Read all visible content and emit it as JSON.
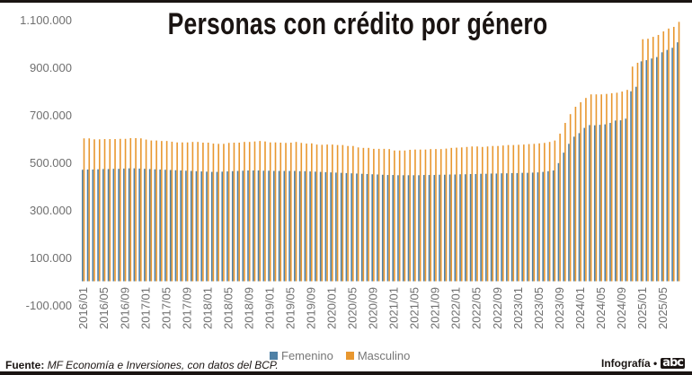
{
  "chart_data": {
    "type": "bar",
    "title": "Personas con crédito por género",
    "xlabel": "",
    "ylabel": "",
    "ylim": [
      -100000,
      1100000
    ],
    "yticks": [
      -100000,
      100000,
      300000,
      500000,
      700000,
      900000,
      1100000
    ],
    "ytick_labels": [
      "-100.000",
      "100.000",
      "300.000",
      "500.000",
      "700.000",
      "900.000",
      "1.100.000"
    ],
    "start_year": 2016,
    "start_month": 1,
    "n_months": 116,
    "xtick_labels": [
      "2016/01",
      "2016/05",
      "2016/09",
      "2017/01",
      "2017/05",
      "2017/09",
      "2018/01",
      "2018/05",
      "2018/09",
      "2019/01",
      "2019/05",
      "2019/09",
      "2020/01",
      "2020/05",
      "2020/09",
      "2021/01",
      "2021/05",
      "2021/09",
      "2022/01",
      "2022/05",
      "2022/09",
      "2023/01",
      "2023/05",
      "2023/09",
      "2024/01",
      "2024/05",
      "2024/09",
      "2025/01",
      "2025/05"
    ],
    "grid": false,
    "legend_position": "bottom-center",
    "series": [
      {
        "name": "Femenino",
        "color": "#4f81a6",
        "values": [
          469000,
          470000,
          470000,
          471000,
          472000,
          472000,
          473000,
          473000,
          474000,
          475000,
          475000,
          474000,
          473000,
          472000,
          471000,
          470000,
          469000,
          468000,
          467000,
          466000,
          465000,
          464000,
          463000,
          462000,
          461000,
          460000,
          460000,
          461000,
          462000,
          463000,
          464000,
          465000,
          466000,
          466000,
          466000,
          465000,
          465000,
          464000,
          464000,
          464000,
          464000,
          464000,
          463000,
          463000,
          462000,
          461000,
          460000,
          459000,
          458000,
          457000,
          456000,
          455000,
          454000,
          453000,
          452000,
          451000,
          450000,
          449000,
          448000,
          447000,
          447000,
          446000,
          446000,
          446000,
          446000,
          446000,
          447000,
          447000,
          447000,
          448000,
          448000,
          449000,
          449000,
          450000,
          450000,
          451000,
          451000,
          452000,
          452000,
          453000,
          453000,
          454000,
          454000,
          455000,
          455000,
          456000,
          456000,
          457000,
          458000,
          460000,
          463000,
          466000,
          497000,
          541000,
          578000,
          608000,
          623000,
          645000,
          657000,
          656000,
          658000,
          660000,
          666000,
          676000,
          677000,
          684000,
          799000,
          818000,
          925000,
          930000,
          937000,
          943000,
          963000,
          973000,
          982000,
          1005000
        ]
      },
      {
        "name": "Masculino",
        "color": "#e8972f",
        "values": [
          601000,
          601000,
          597000,
          597000,
          598000,
          598000,
          598000,
          599000,
          599000,
          602000,
          602000,
          601000,
          596000,
          592000,
          592000,
          590000,
          590000,
          587000,
          584000,
          584000,
          584000,
          586000,
          586000,
          583000,
          583000,
          579000,
          578000,
          578000,
          582000,
          583000,
          583000,
          586000,
          586000,
          588000,
          590000,
          588000,
          584000,
          584000,
          583000,
          582000,
          583000,
          586000,
          582000,
          579000,
          580000,
          575000,
          574000,
          575000,
          575000,
          573000,
          573000,
          569000,
          569000,
          563000,
          561000,
          561000,
          557000,
          557000,
          557000,
          556000,
          550000,
          550000,
          550000,
          553000,
          554000,
          554000,
          554000,
          556000,
          556000,
          556000,
          558000,
          561000,
          562000,
          563000,
          565000,
          567000,
          567000,
          565000,
          567000,
          569000,
          569000,
          571000,
          573000,
          573000,
          574000,
          575000,
          577000,
          578000,
          580000,
          582000,
          586000,
          592000,
          621000,
          666000,
          703000,
          734000,
          753000,
          771000,
          786000,
          786000,
          786000,
          788000,
          791000,
          793000,
          798000,
          805000,
          903000,
          919000,
          1018000,
          1020000,
          1028000,
          1036000,
          1051000,
          1063000,
          1070000,
          1091000
        ]
      }
    ]
  },
  "legend": {
    "femenino": "Femenino",
    "masculino": "Masculino"
  },
  "footer": {
    "source_label": "Fuente:",
    "source_text": "MF Economía e Inversiones, con datos del BCP.",
    "credit": "Infografía •",
    "logo": "abc"
  }
}
